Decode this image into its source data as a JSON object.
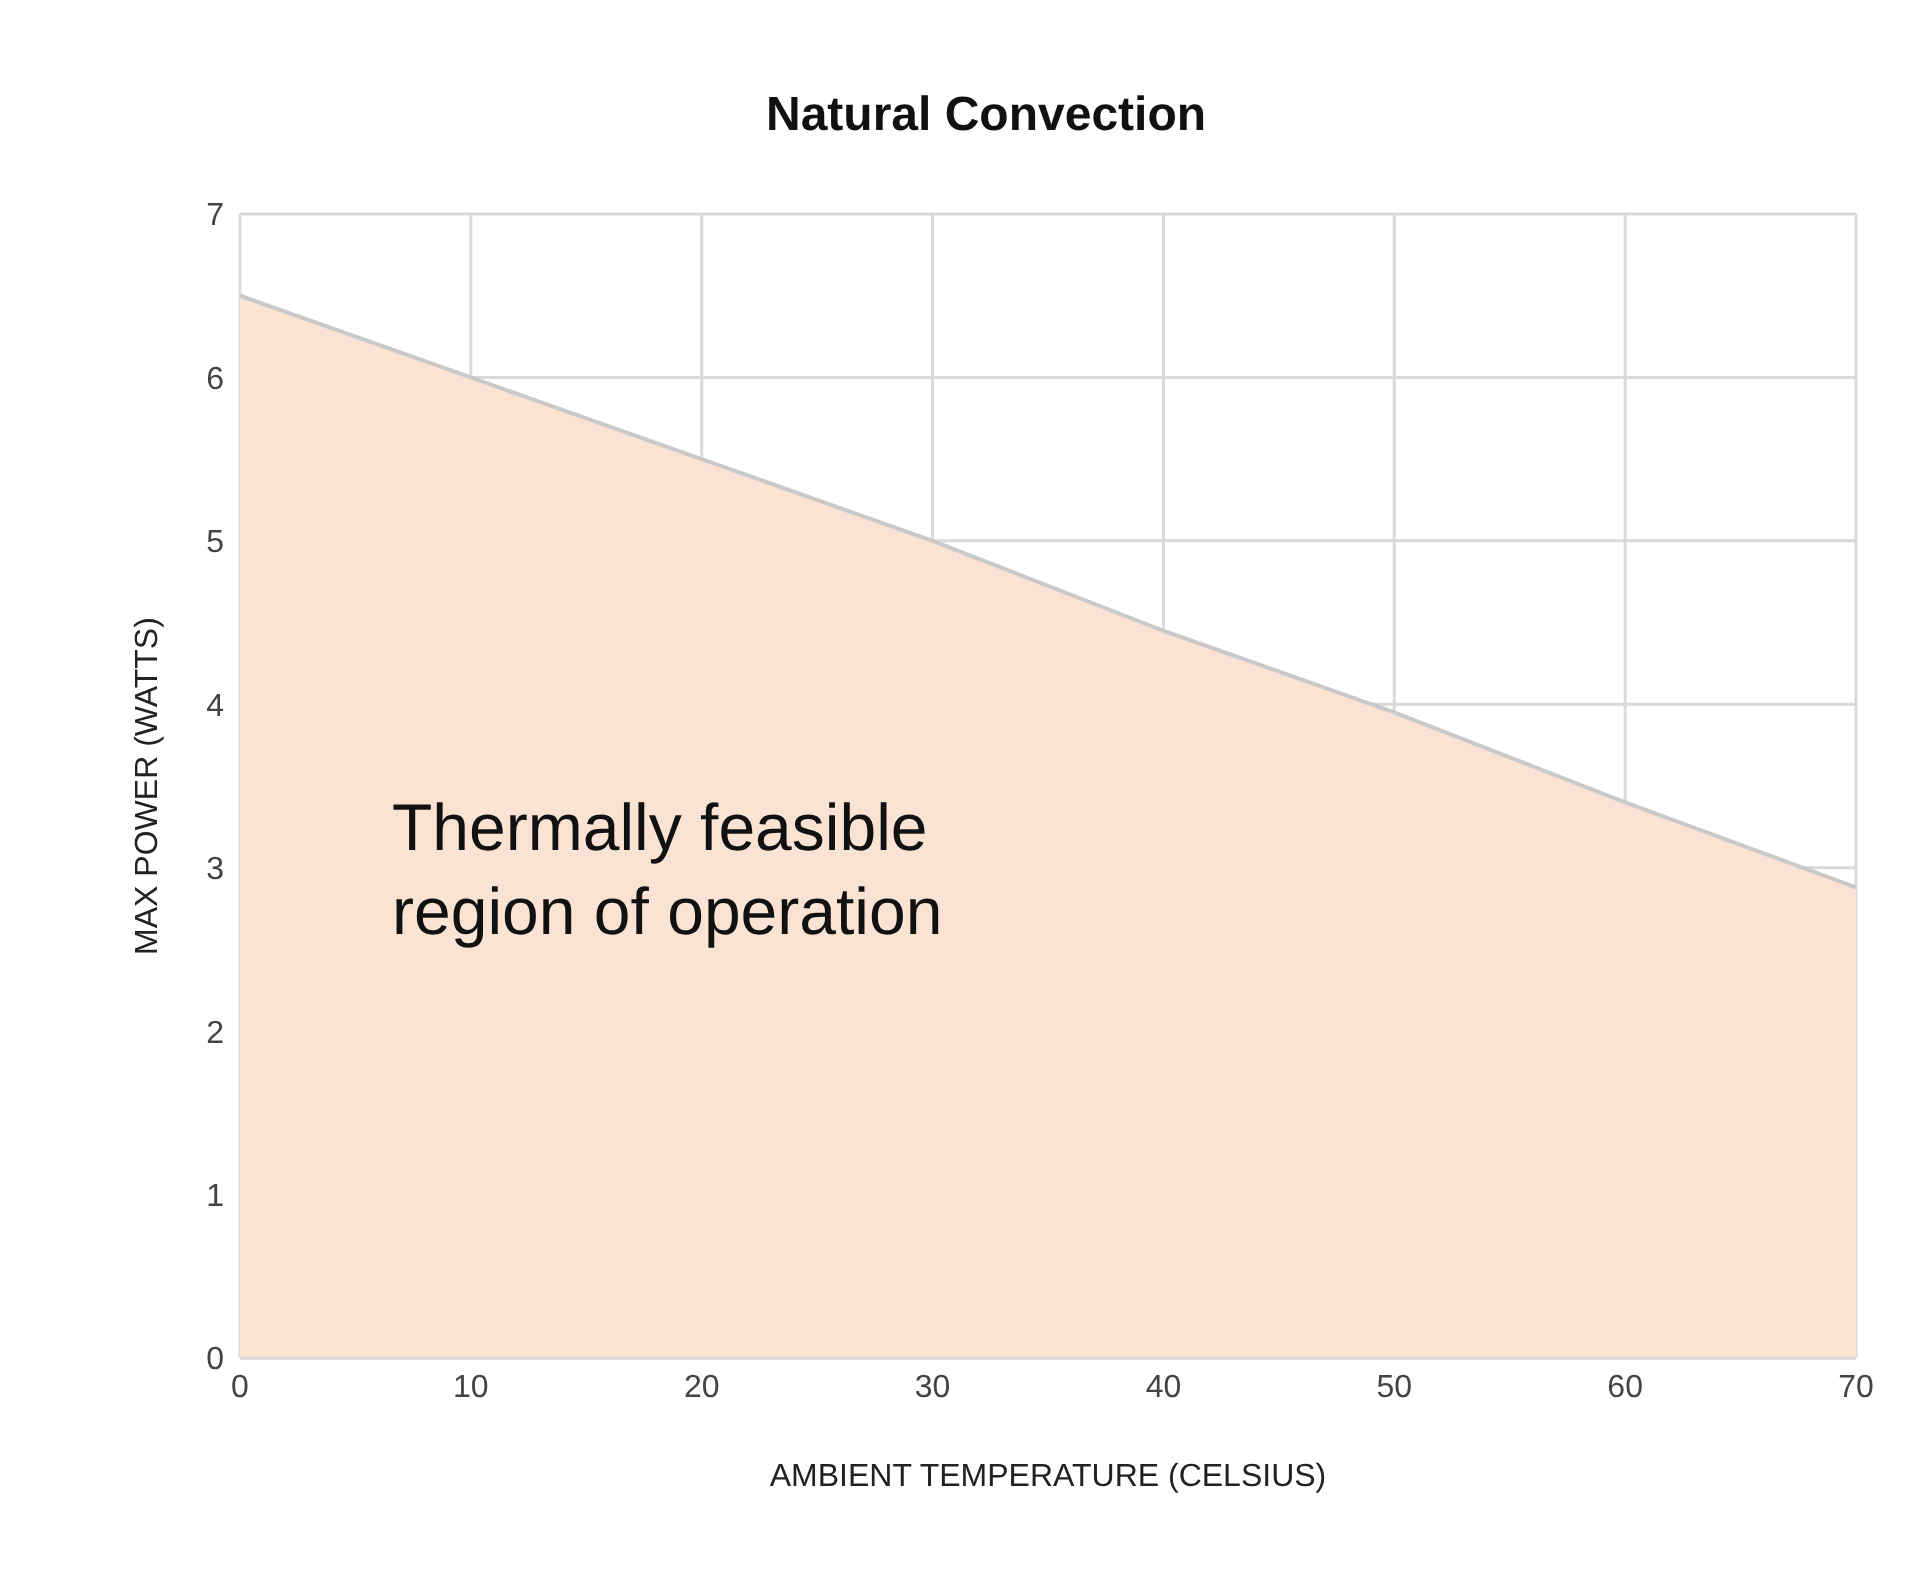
{
  "chart_data": {
    "type": "area",
    "title": "Natural  Convection",
    "xlabel": "AMBIENT TEMPERATURE (CELSIUS)",
    "ylabel": "MAX POWER (WATTS)",
    "x": [
      0,
      10,
      20,
      30,
      40,
      50,
      60,
      70
    ],
    "series": [
      {
        "color": "#fbe3d4",
        "values": [
          6.5,
          6.0,
          5.5,
          5.0,
          4.45,
          3.95,
          3.4,
          2.88
        ]
      }
    ],
    "xlim": [
      0,
      70
    ],
    "xticks": [
      0,
      10,
      20,
      30,
      40,
      50,
      60,
      70
    ],
    "ylim": [
      0,
      7
    ],
    "yticks": [
      0,
      1,
      2,
      3,
      4,
      5,
      6,
      7
    ],
    "grid": true,
    "marker": "none",
    "line_style": "solid",
    "annotations": [
      "Thermally feasible region of operation"
    ]
  }
}
